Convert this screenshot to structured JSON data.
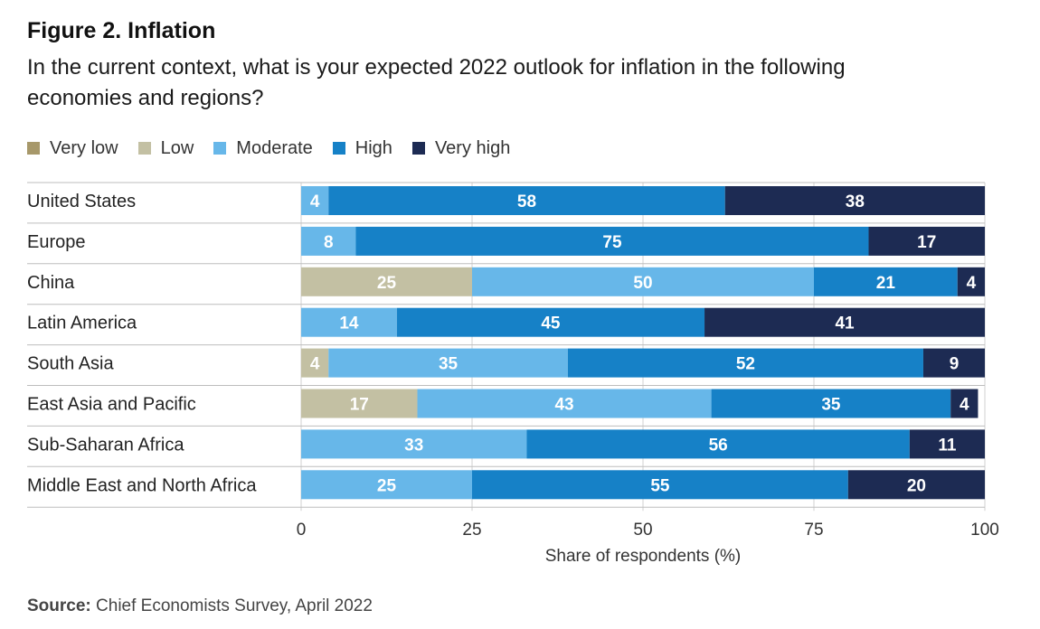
{
  "figure": {
    "title": "Figure 2. Inflation",
    "subtitle": "In the current context, what is your expected 2022 outlook for inflation in the following economies and regions?"
  },
  "source": {
    "label": "Source:",
    "text": " Chief Economists Survey, April 2022"
  },
  "chart_data": {
    "type": "bar",
    "orientation": "horizontal",
    "stacked": true,
    "xlabel": "Share of respondents (%)",
    "xlim": [
      0,
      100
    ],
    "xticks": [
      0,
      25,
      50,
      75,
      100
    ],
    "grid": true,
    "legend_position": "top-left",
    "categories": [
      "United States",
      "Europe",
      "China",
      "Latin America",
      "South Asia",
      "East Asia and Pacific",
      "Sub-Saharan Africa",
      "Middle East and North Africa"
    ],
    "series": [
      {
        "name": "Very low",
        "color": "#a7986a",
        "values": [
          0,
          0,
          0,
          0,
          0,
          0,
          0,
          0
        ]
      },
      {
        "name": "Low",
        "color": "#c3c0a3",
        "values": [
          0,
          0,
          25,
          0,
          4,
          17,
          0,
          0
        ]
      },
      {
        "name": "Moderate",
        "color": "#67b7e9",
        "values": [
          4,
          8,
          50,
          14,
          35,
          43,
          33,
          25
        ]
      },
      {
        "name": "High",
        "color": "#1681c7",
        "values": [
          58,
          75,
          21,
          45,
          52,
          35,
          56,
          55
        ]
      },
      {
        "name": "Very high",
        "color": "#1d2b53",
        "values": [
          38,
          17,
          4,
          41,
          9,
          4,
          11,
          20
        ]
      }
    ]
  }
}
